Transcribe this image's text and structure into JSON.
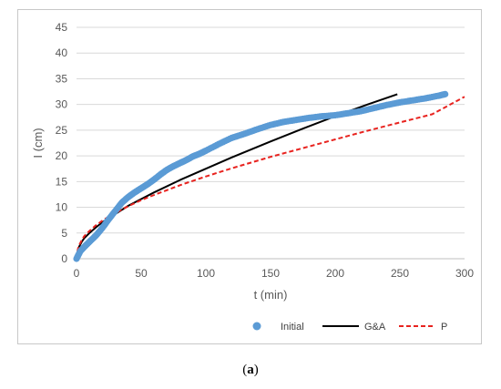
{
  "caption": {
    "open": "(",
    "letter": "a",
    "close": ")"
  },
  "chart_data": {
    "type": "scatter",
    "xlabel": "t (min)",
    "ylabel": "I (cm)",
    "xlim": [
      0,
      300
    ],
    "ylim": [
      0,
      45
    ],
    "xticks": [
      0,
      50,
      100,
      150,
      200,
      250,
      300
    ],
    "yticks": [
      0,
      5,
      10,
      15,
      20,
      25,
      30,
      35,
      40,
      45
    ],
    "grid": "horizontal",
    "legend_position": "bottom",
    "series": [
      {
        "name": "Initial",
        "kind": "markers",
        "color": "#5b9bd5",
        "x": [
          0,
          3,
          6,
          10,
          15,
          20,
          25,
          30,
          35,
          40,
          45,
          50,
          55,
          60,
          65,
          70,
          75,
          80,
          85,
          90,
          95,
          100,
          110,
          120,
          130,
          140,
          150,
          160,
          170,
          180,
          190,
          200,
          210,
          220,
          230,
          240,
          250,
          260,
          270,
          280,
          285
        ],
        "y": [
          0,
          1.5,
          2.3,
          3.3,
          4.5,
          6.0,
          7.7,
          9.3,
          10.9,
          12.0,
          12.9,
          13.7,
          14.5,
          15.4,
          16.4,
          17.3,
          18.0,
          18.6,
          19.2,
          19.9,
          20.4,
          21.0,
          22.3,
          23.5,
          24.3,
          25.2,
          26.0,
          26.6,
          27.0,
          27.4,
          27.7,
          27.9,
          28.3,
          28.7,
          29.3,
          29.9,
          30.4,
          30.8,
          31.2,
          31.7,
          32.0
        ]
      },
      {
        "name": "G&A",
        "kind": "line",
        "color": "#000000",
        "dash": "solid",
        "x": [
          0,
          1,
          2,
          4,
          6,
          10,
          15,
          20,
          25,
          30,
          40,
          50,
          60,
          80,
          100,
          120,
          150,
          175,
          200,
          225,
          248
        ],
        "y": [
          0,
          1.6,
          2.3,
          3.3,
          4.0,
          5.0,
          6.1,
          7.1,
          7.9,
          8.7,
          10.3,
          11.6,
          12.9,
          15.3,
          17.5,
          19.7,
          22.8,
          25.3,
          27.7,
          30.0,
          32.0
        ]
      },
      {
        "name": "P",
        "kind": "line",
        "color": "#e8231f",
        "dash": "dashed",
        "x": [
          0,
          1,
          2,
          4,
          6,
          10,
          15,
          20,
          25,
          30,
          40,
          50,
          60,
          80,
          100,
          120,
          150,
          175,
          200,
          225,
          250,
          275,
          300
        ],
        "y": [
          0,
          1.8,
          2.6,
          3.6,
          4.4,
          5.4,
          6.5,
          7.4,
          8.2,
          8.9,
          10.2,
          11.4,
          12.4,
          14.3,
          16.0,
          17.6,
          19.8,
          21.5,
          23.2,
          24.9,
          26.5,
          28.1,
          31.5
        ]
      }
    ]
  }
}
